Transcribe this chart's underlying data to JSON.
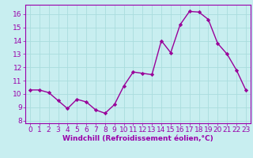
{
  "x": [
    0,
    1,
    2,
    3,
    4,
    5,
    6,
    7,
    8,
    9,
    10,
    11,
    12,
    13,
    14,
    15,
    16,
    17,
    18,
    19,
    20,
    21,
    22,
    23
  ],
  "y": [
    10.3,
    10.3,
    10.1,
    9.5,
    8.9,
    9.6,
    9.4,
    8.8,
    8.55,
    9.2,
    10.6,
    11.65,
    11.55,
    11.45,
    14.0,
    13.1,
    15.2,
    16.2,
    16.15,
    15.6,
    13.8,
    13.0,
    11.8,
    10.3
  ],
  "line_color": "#990099",
  "marker": "D",
  "marker_size": 2.2,
  "bg_color": "#c8eef0",
  "grid_color": "#aadddd",
  "xlabel": "Windchill (Refroidissement éolien,°C)",
  "xlabel_fontsize": 6.5,
  "xtick_labels": [
    "0",
    "1",
    "2",
    "3",
    "4",
    "5",
    "6",
    "7",
    "8",
    "9",
    "10",
    "11",
    "12",
    "13",
    "14",
    "15",
    "16",
    "17",
    "18",
    "19",
    "20",
    "21",
    "22",
    "23"
  ],
  "ytick_labels": [
    "8",
    "9",
    "10",
    "11",
    "12",
    "13",
    "14",
    "15",
    "16"
  ],
  "ylim": [
    7.8,
    16.7
  ],
  "xlim": [
    -0.5,
    23.5
  ],
  "tick_fontsize": 6.5,
  "line_width": 1.0
}
